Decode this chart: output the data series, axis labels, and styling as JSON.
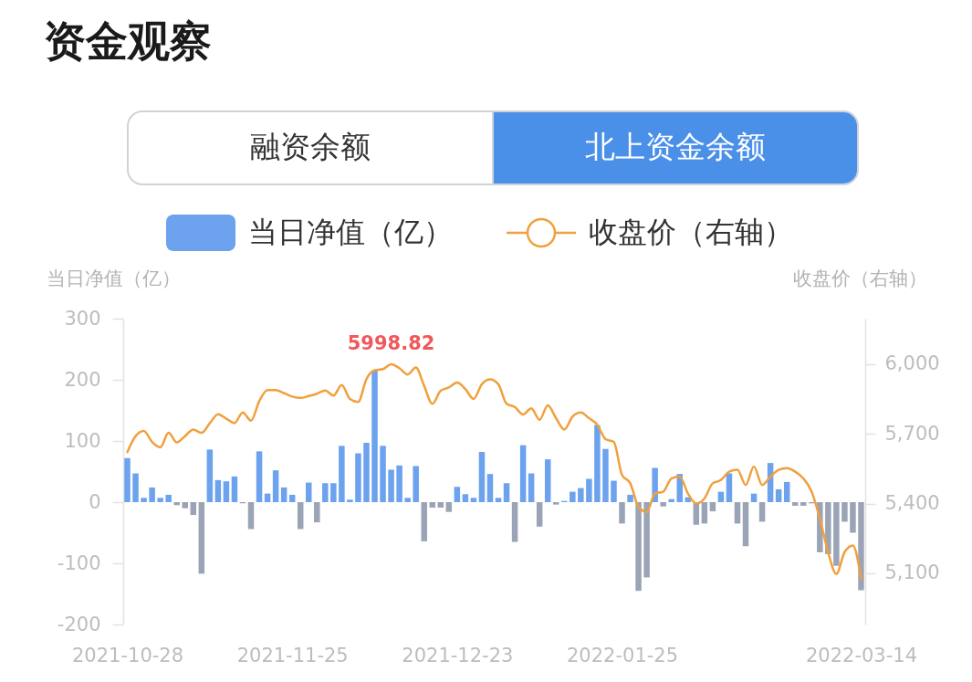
{
  "chart_data": {
    "type": "bar",
    "title": "资金观察",
    "annotations": [
      "融资余额",
      "北上资金余额"
    ],
    "ylabel": "当日净值（亿）",
    "y2label": "收盘价（右轴）",
    "categories": [
      "2021-10-28",
      null,
      null,
      null,
      null,
      null,
      null,
      null,
      null,
      null,
      null,
      null,
      null,
      null,
      null,
      null,
      null,
      null,
      null,
      null,
      "2021-11-25",
      null,
      null,
      null,
      null,
      null,
      null,
      null,
      null,
      null,
      null,
      null,
      null,
      null,
      null,
      null,
      null,
      null,
      null,
      null,
      "2021-12-23",
      null,
      null,
      null,
      null,
      null,
      null,
      null,
      null,
      null,
      null,
      null,
      null,
      null,
      null,
      null,
      null,
      null,
      null,
      null,
      "2022-01-25",
      null,
      null,
      null,
      null,
      null,
      null,
      null,
      null,
      null,
      null,
      null,
      null,
      null,
      null,
      null,
      null,
      null,
      null,
      null,
      null,
      null,
      null,
      null,
      null,
      null,
      null,
      null,
      null,
      "2022-03-14"
    ],
    "ylim": [
      -200,
      300
    ],
    "yticks": [
      -200,
      -100,
      0,
      100,
      200,
      300
    ],
    "y2lim": [
      4880,
      6195
    ],
    "y2ticks": [
      {
        "value": 5100,
        "label": "5,100"
      },
      {
        "value": 5400,
        "label": "5,400"
      },
      {
        "value": 5700,
        "label": "5,700"
      },
      {
        "value": 6000,
        "label": "6,000"
      }
    ],
    "grid": false,
    "legend": "top",
    "series": [
      {
        "name": "当日净值（亿）",
        "color": "#6ca2ee",
        "values": [
          72,
          47,
          7,
          24,
          7,
          12,
          -5,
          -10,
          -21,
          -117,
          86,
          36,
          34,
          42,
          -2,
          -44,
          83,
          14,
          52,
          24,
          12,
          -44,
          32,
          -33,
          31,
          31,
          92,
          4,
          80,
          97,
          215,
          92,
          53,
          60,
          7,
          59,
          -64,
          -9,
          -9,
          -16,
          25,
          13,
          7,
          82,
          46,
          7,
          31,
          -65,
          93,
          47,
          -40,
          70,
          -4,
          2,
          17,
          23,
          38,
          126,
          87,
          35,
          -35,
          12,
          -145,
          -123,
          56,
          -7,
          5,
          46,
          8,
          -37,
          -35,
          -15,
          17,
          47,
          -35,
          -72,
          14,
          -32,
          64,
          21,
          33,
          -6,
          -6,
          -2,
          -82,
          -85,
          -104,
          -32,
          -50,
          -144
        ],
        "colors": [
          "#6ca2ee",
          "#6ca2ee",
          "#6ca2ee",
          "#6ca2ee",
          "#6ca2ee",
          "#6ca2ee",
          "#9ba4b6",
          "#9ba4b6",
          "#9ba4b6",
          "#9ba4b6",
          "#6ca2ee",
          "#6ca2ee",
          "#6ca2ee",
          "#6ca2ee",
          "#9ba4b6",
          "#9ba4b6",
          "#6ca2ee",
          "#6ca2ee",
          "#6ca2ee",
          "#6ca2ee",
          "#6ca2ee",
          "#9ba4b6",
          "#6ca2ee",
          "#9ba4b6",
          "#6ca2ee",
          "#6ca2ee",
          "#6ca2ee",
          "#6ca2ee",
          "#6ca2ee",
          "#6ca2ee",
          "#6ca2ee",
          "#6ca2ee",
          "#6ca2ee",
          "#6ca2ee",
          "#6ca2ee",
          "#6ca2ee",
          "#9ba4b6",
          "#9ba4b6",
          "#9ba4b6",
          "#9ba4b6",
          "#6ca2ee",
          "#6ca2ee",
          "#6ca2ee",
          "#6ca2ee",
          "#6ca2ee",
          "#6ca2ee",
          "#6ca2ee",
          "#9ba4b6",
          "#6ca2ee",
          "#6ca2ee",
          "#9ba4b6",
          "#6ca2ee",
          "#9ba4b6",
          "#6ca2ee",
          "#6ca2ee",
          "#6ca2ee",
          "#6ca2ee",
          "#6ca2ee",
          "#6ca2ee",
          "#6ca2ee",
          "#9ba4b6",
          "#6ca2ee",
          "#9ba4b6",
          "#9ba4b6",
          "#6ca2ee",
          "#9ba4b6",
          "#6ca2ee",
          "#6ca2ee",
          "#6ca2ee",
          "#9ba4b6",
          "#9ba4b6",
          "#9ba4b6",
          "#6ca2ee",
          "#6ca2ee",
          "#9ba4b6",
          "#9ba4b6",
          "#6ca2ee",
          "#9ba4b6",
          "#6ca2ee",
          "#6ca2ee",
          "#6ca2ee",
          "#9ba4b6",
          "#9ba4b6",
          "#9ba4b6",
          "#9ba4b6",
          "#9ba4b6",
          "#9ba4b6",
          "#9ba4b6",
          "#9ba4b6",
          "#9ba4b6"
        ]
      },
      {
        "name": "收盘价（右轴）",
        "type": "line",
        "axis": "y2",
        "color": "#f0a03c",
        "values": [
          5621,
          5690,
          5712,
          5665,
          5642,
          5704,
          5663,
          5690,
          5718,
          5704,
          5745,
          5784,
          5765,
          5746,
          5792,
          5756,
          5840,
          5888,
          5888,
          5875,
          5860,
          5854,
          5862,
          5872,
          5886,
          5864,
          5909,
          5850,
          5837,
          5935,
          5973,
          5978,
          5998.82,
          5982,
          5955,
          5985,
          5906,
          5829,
          5885,
          5899,
          5920,
          5892,
          5850,
          5913,
          5934,
          5913,
          5829,
          5815,
          5783,
          5809,
          5760,
          5822,
          5767,
          5718,
          5774,
          5792,
          5767,
          5739,
          5677,
          5665,
          5523,
          5487,
          5386,
          5364,
          5443,
          5451,
          5508,
          5516,
          5443,
          5400,
          5422,
          5487,
          5501,
          5537,
          5545,
          5480,
          5559,
          5480,
          5516,
          5545,
          5552,
          5537,
          5508,
          5451,
          5335,
          5191,
          5097,
          5191,
          5220,
          5075
        ],
        "value_labels": [
          null,
          null,
          null,
          null,
          null,
          null,
          null,
          null,
          null,
          null,
          null,
          null,
          null,
          null,
          null,
          null,
          null,
          null,
          null,
          null,
          null,
          null,
          null,
          null,
          null,
          null,
          null,
          null,
          null,
          null,
          null,
          null,
          "5998.82",
          null,
          null,
          null,
          null,
          null,
          null,
          null,
          null,
          null,
          null,
          null,
          null,
          null,
          null,
          null,
          null,
          null,
          null,
          null,
          null,
          null,
          null,
          null,
          null,
          null,
          null,
          null,
          null,
          null,
          null,
          null,
          null,
          null,
          null,
          null,
          null,
          null,
          null,
          null,
          null,
          null,
          null,
          null,
          null,
          null,
          null,
          null,
          null,
          null,
          null,
          null,
          null,
          null,
          null,
          null,
          null,
          null
        ]
      }
    ]
  }
}
